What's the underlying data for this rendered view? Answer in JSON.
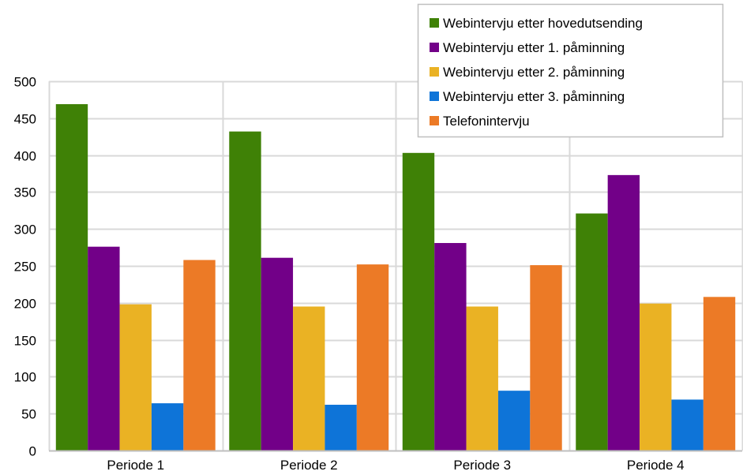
{
  "chart_data": {
    "type": "bar",
    "title": "",
    "xlabel": "",
    "ylabel": "",
    "categories": [
      "Periode 1",
      "Periode 2",
      "Periode 3",
      "Periode 4"
    ],
    "ylim": [
      0,
      500
    ],
    "yticks": [
      0,
      50,
      100,
      150,
      200,
      250,
      300,
      350,
      400,
      450,
      500
    ],
    "grid": true,
    "legend_position": "top-right",
    "series": [
      {
        "name": "Webintervju etter hovedutsending",
        "color": "#3f8106",
        "values": [
          469,
          432,
          403,
          321
        ]
      },
      {
        "name": "Webintervju etter 1. påminning",
        "color": "#720088",
        "values": [
          276,
          261,
          281,
          373
        ]
      },
      {
        "name": "Webintervju etter 2. påminning",
        "color": "#eab224",
        "values": [
          198,
          195,
          195,
          199
        ]
      },
      {
        "name": "Webintervju etter 3. påminning",
        "color": "#0e74d8",
        "values": [
          64,
          62,
          81,
          69
        ]
      },
      {
        "name": "Telefonintervju",
        "color": "#ec7a26",
        "values": [
          258,
          252,
          251,
          208
        ]
      }
    ]
  }
}
